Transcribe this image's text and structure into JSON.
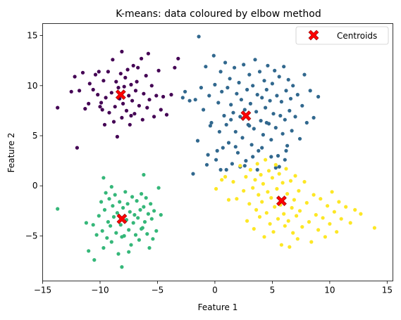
{
  "chart_data": {
    "type": "scatter",
    "title": "K-means: data coloured by elbow method",
    "xlabel": "Feature 1",
    "ylabel": "Feature 2",
    "xlim": [
      -15,
      15.5
    ],
    "ylim": [
      -9.5,
      16.2
    ],
    "xticks": [
      -15,
      -10,
      -5,
      0,
      5,
      10,
      15
    ],
    "yticks": [
      -5,
      0,
      5,
      10,
      15
    ],
    "grid": false,
    "legend_position": "top-right",
    "clusters": [
      {
        "color": "#440154",
        "points": [
          [
            -13.7,
            7.8
          ],
          [
            -12.5,
            9.4
          ],
          [
            -12.2,
            10.9
          ],
          [
            -12.0,
            3.8
          ],
          [
            -11.8,
            9.5
          ],
          [
            -11.5,
            11.3
          ],
          [
            -11.3,
            7.7
          ],
          [
            -11.0,
            8.2
          ],
          [
            -10.9,
            10.2
          ],
          [
            -10.6,
            9.6
          ],
          [
            -10.4,
            11.1
          ],
          [
            -10.2,
            9.1
          ],
          [
            -10.0,
            7.9
          ],
          [
            -9.8,
            7.6
          ],
          [
            -9.7,
            10.5
          ],
          [
            -9.6,
            6.1
          ],
          [
            -9.5,
            8.8
          ],
          [
            -9.3,
            11.4
          ],
          [
            -9.2,
            7.3
          ],
          [
            -9.0,
            9.3
          ],
          [
            -8.9,
            12.6
          ],
          [
            -8.8,
            6.4
          ],
          [
            -8.7,
            7.9
          ],
          [
            -8.6,
            10.4
          ],
          [
            -8.5,
            4.9
          ],
          [
            -8.4,
            9.8
          ],
          [
            -8.3,
            8.7
          ],
          [
            -8.2,
            11.2
          ],
          [
            -8.1,
            6.8
          ],
          [
            -8.0,
            8.2
          ],
          [
            -7.9,
            9.9
          ],
          [
            -7.8,
            10.8
          ],
          [
            -7.7,
            7.5
          ],
          [
            -7.6,
            11.6
          ],
          [
            -7.5,
            9.0
          ],
          [
            -7.4,
            6.1
          ],
          [
            -7.3,
            10.1
          ],
          [
            -7.2,
            8.5
          ],
          [
            -7.1,
            12.0
          ],
          [
            -7.0,
            7.2
          ],
          [
            -6.9,
            9.5
          ],
          [
            -6.8,
            10.4
          ],
          [
            -6.6,
            8.0
          ],
          [
            -6.4,
            12.7
          ],
          [
            -6.3,
            6.6
          ],
          [
            -6.2,
            9.2
          ],
          [
            -6.0,
            11.0
          ],
          [
            -5.9,
            7.8
          ],
          [
            -5.8,
            13.2
          ],
          [
            -5.7,
            8.6
          ],
          [
            -5.5,
            10.0
          ],
          [
            -5.3,
            6.9
          ],
          [
            -5.1,
            9.0
          ],
          [
            -4.9,
            11.5
          ],
          [
            -4.7,
            7.6
          ],
          [
            -4.5,
            8.9
          ],
          [
            -4.2,
            7.1
          ],
          [
            -3.8,
            9.1
          ],
          [
            -3.5,
            11.8
          ],
          [
            -3.2,
            12.7
          ],
          [
            -10.1,
            11.4
          ],
          [
            -8.1,
            13.4
          ],
          [
            -6.7,
            11.8
          ],
          [
            -9.9,
            8.3
          ],
          [
            -7.3,
            7.0
          ]
        ]
      },
      {
        "color": "#31688e",
        "points": [
          [
            -1.4,
            14.9
          ],
          [
            -2.6,
            9.4
          ],
          [
            -2.2,
            8.5
          ],
          [
            -1.9,
            1.2
          ],
          [
            -1.5,
            4.5
          ],
          [
            -1.2,
            9.8
          ],
          [
            -1.0,
            7.6
          ],
          [
            -0.8,
            11.9
          ],
          [
            -0.6,
            3.1
          ],
          [
            -0.5,
            9.0
          ],
          [
            -0.3,
            6.3
          ],
          [
            -0.1,
            13.0
          ],
          [
            0.0,
            10.1
          ],
          [
            0.1,
            2.6
          ],
          [
            0.3,
            8.3
          ],
          [
            0.4,
            5.4
          ],
          [
            0.5,
            11.4
          ],
          [
            0.6,
            9.4
          ],
          [
            0.7,
            3.8
          ],
          [
            0.8,
            7.0
          ],
          [
            0.9,
            12.3
          ],
          [
            1.0,
            6.1
          ],
          [
            1.1,
            9.8
          ],
          [
            1.2,
            4.3
          ],
          [
            1.3,
            10.7
          ],
          [
            1.4,
            8.1
          ],
          [
            1.5,
            2.2
          ],
          [
            1.6,
            7.3
          ],
          [
            1.7,
            11.8
          ],
          [
            1.8,
            5.4
          ],
          [
            1.9,
            9.2
          ],
          [
            2.0,
            3.3
          ],
          [
            2.1,
            10.3
          ],
          [
            2.2,
            6.9
          ],
          [
            2.3,
            8.6
          ],
          [
            2.4,
            4.8
          ],
          [
            2.5,
            12.1
          ],
          [
            2.6,
            7.6
          ],
          [
            2.7,
            2.5
          ],
          [
            2.8,
            9.6
          ],
          [
            2.9,
            6.1
          ],
          [
            3.0,
            11.1
          ],
          [
            3.1,
            8.2
          ],
          [
            3.2,
            4.1
          ],
          [
            3.3,
            10.0
          ],
          [
            3.4,
            5.7
          ],
          [
            3.5,
            12.6
          ],
          [
            3.6,
            7.4
          ],
          [
            3.7,
            9.1
          ],
          [
            3.8,
            3.5
          ],
          [
            3.9,
            11.4
          ],
          [
            4.0,
            6.5
          ],
          [
            4.1,
            8.8
          ],
          [
            4.2,
            5.1
          ],
          [
            4.3,
            10.5
          ],
          [
            4.4,
            7.8
          ],
          [
            4.5,
            9.6
          ],
          [
            4.6,
            12.0
          ],
          [
            4.7,
            6.2
          ],
          [
            4.8,
            8.5
          ],
          [
            4.9,
            4.6
          ],
          [
            5.0,
            10.2
          ],
          [
            5.1,
            7.2
          ],
          [
            5.2,
            11.5
          ],
          [
            5.3,
            5.8
          ],
          [
            5.4,
            9.0
          ],
          [
            5.5,
            3.0
          ],
          [
            5.6,
            10.9
          ],
          [
            5.7,
            7.0
          ],
          [
            5.8,
            8.4
          ],
          [
            5.9,
            5.2
          ],
          [
            6.0,
            11.9
          ],
          [
            6.1,
            6.6
          ],
          [
            6.2,
            9.5
          ],
          [
            6.3,
            4.0
          ],
          [
            6.4,
            10.6
          ],
          [
            6.5,
            7.5
          ],
          [
            6.6,
            8.7
          ],
          [
            6.7,
            5.5
          ],
          [
            6.8,
            10.0
          ],
          [
            7.0,
            6.9
          ],
          [
            7.2,
            9.1
          ],
          [
            7.4,
            4.7
          ],
          [
            7.6,
            8.0
          ],
          [
            7.8,
            11.1
          ],
          [
            8.0,
            6.3
          ],
          [
            8.3,
            9.5
          ],
          [
            8.6,
            6.8
          ],
          [
            9.0,
            8.9
          ],
          [
            -0.7,
            2.1
          ],
          [
            0.2,
            3.5
          ],
          [
            1.0,
            1.6
          ],
          [
            1.8,
            3.9
          ],
          [
            2.6,
            2.0
          ],
          [
            3.3,
            2.9
          ],
          [
            4.1,
            3.8
          ],
          [
            4.9,
            2.9
          ],
          [
            5.6,
            1.9
          ],
          [
            6.1,
            2.6
          ],
          [
            -1.7,
            8.6
          ],
          [
            -0.4,
            6.0
          ],
          [
            0.5,
            1.6
          ],
          [
            1.4,
            6.6
          ],
          [
            2.2,
            1.9
          ],
          [
            3.0,
            6.0
          ],
          [
            3.7,
            1.6
          ],
          [
            4.5,
            6.3
          ],
          [
            5.3,
            1.8
          ],
          [
            6.2,
            3.5
          ],
          [
            -2.8,
            8.8
          ]
        ]
      },
      {
        "color": "#35b779",
        "points": [
          [
            -13.7,
            -2.3
          ],
          [
            -11.2,
            -3.7
          ],
          [
            -11.0,
            -6.5
          ],
          [
            -10.5,
            -7.4
          ],
          [
            -10.3,
            -4.9
          ],
          [
            -10.1,
            -3.0
          ],
          [
            -9.9,
            -1.6
          ],
          [
            -9.8,
            -4.5
          ],
          [
            -9.7,
            -6.2
          ],
          [
            -9.6,
            -2.4
          ],
          [
            -9.5,
            -0.7
          ],
          [
            -9.4,
            -5.2
          ],
          [
            -9.3,
            -3.6
          ],
          [
            -9.2,
            -1.3
          ],
          [
            -9.1,
            -4.0
          ],
          [
            -9.0,
            -5.6
          ],
          [
            -8.9,
            -2.0
          ],
          [
            -8.8,
            -3.1
          ],
          [
            -8.7,
            -0.9
          ],
          [
            -8.6,
            -4.7
          ],
          [
            -8.5,
            -2.7
          ],
          [
            -8.4,
            -6.8
          ],
          [
            -8.3,
            -1.6
          ],
          [
            -8.2,
            -3.9
          ],
          [
            -8.1,
            -8.1
          ],
          [
            -8.0,
            -2.2
          ],
          [
            -7.9,
            -5.0
          ],
          [
            -7.8,
            -0.6
          ],
          [
            -7.7,
            -3.4
          ],
          [
            -7.6,
            -1.8
          ],
          [
            -7.5,
            -4.4
          ],
          [
            -7.4,
            -2.6
          ],
          [
            -7.3,
            -5.9
          ],
          [
            -7.2,
            -1.1
          ],
          [
            -7.1,
            -3.7
          ],
          [
            -7.0,
            -2.9
          ],
          [
            -6.9,
            -4.9
          ],
          [
            -6.8,
            -1.5
          ],
          [
            -6.7,
            -3.2
          ],
          [
            -6.6,
            -5.4
          ],
          [
            -6.5,
            -2.4
          ],
          [
            -6.4,
            -0.8
          ],
          [
            -6.3,
            -4.2
          ],
          [
            -6.2,
            -2.1
          ],
          [
            -6.1,
            -3.6
          ],
          [
            -6.0,
            -1.2
          ],
          [
            -5.9,
            -4.8
          ],
          [
            -5.8,
            -2.8
          ],
          [
            -5.7,
            -6.2
          ],
          [
            -5.6,
            -1.8
          ],
          [
            -5.5,
            -3.3
          ],
          [
            -5.4,
            -5.3
          ],
          [
            -5.3,
            -2.5
          ],
          [
            -5.1,
            -4.5
          ],
          [
            -4.9,
            -0.2
          ],
          [
            -4.7,
            -2.9
          ],
          [
            -10.6,
            -3.9
          ],
          [
            -9.0,
            -0.1
          ],
          [
            -8.1,
            -5.1
          ],
          [
            -7.5,
            -6.6
          ],
          [
            -6.2,
            1.1
          ],
          [
            -9.7,
            0.8
          ],
          [
            -6.4,
            -4.3
          ]
        ]
      },
      {
        "color": "#fde725",
        "points": [
          [
            1.6,
            0.4
          ],
          [
            1.9,
            -1.3
          ],
          [
            2.2,
            2.0
          ],
          [
            2.5,
            -0.5
          ],
          [
            2.7,
            0.9
          ],
          [
            2.8,
            -3.5
          ],
          [
            3.0,
            -1.8
          ],
          [
            3.1,
            1.6
          ],
          [
            3.3,
            -0.2
          ],
          [
            3.4,
            -4.3
          ],
          [
            3.5,
            0.6
          ],
          [
            3.6,
            -2.4
          ],
          [
            3.7,
            2.2
          ],
          [
            3.8,
            -0.9
          ],
          [
            3.9,
            -3.1
          ],
          [
            4.0,
            1.1
          ],
          [
            4.1,
            -1.6
          ],
          [
            4.2,
            0.2
          ],
          [
            4.3,
            -5.1
          ],
          [
            4.4,
            2.6
          ],
          [
            4.5,
            -2.7
          ],
          [
            4.6,
            -0.6
          ],
          [
            4.7,
            1.5
          ],
          [
            4.8,
            -3.8
          ],
          [
            4.9,
            -1.2
          ],
          [
            5.0,
            0.8
          ],
          [
            5.1,
            -4.6
          ],
          [
            5.2,
            -2.1
          ],
          [
            5.3,
            2.1
          ],
          [
            5.4,
            -0.3
          ],
          [
            5.5,
            -3.3
          ],
          [
            5.6,
            1.2
          ],
          [
            5.7,
            -1.9
          ],
          [
            5.8,
            -5.9
          ],
          [
            5.9,
            0.3
          ],
          [
            6.0,
            -2.8
          ],
          [
            6.1,
            -4.0
          ],
          [
            6.2,
            1.7
          ],
          [
            6.3,
            -0.8
          ],
          [
            6.4,
            -3.5
          ],
          [
            6.5,
            -6.1
          ],
          [
            6.6,
            0.5
          ],
          [
            6.7,
            -2.2
          ],
          [
            6.8,
            -4.7
          ],
          [
            6.9,
            -1.4
          ],
          [
            7.0,
            1.0
          ],
          [
            7.1,
            -3.0
          ],
          [
            7.2,
            -5.3
          ],
          [
            7.3,
            -0.5
          ],
          [
            7.4,
            -2.5
          ],
          [
            7.6,
            -4.1
          ],
          [
            7.8,
            0.4
          ],
          [
            8.0,
            -1.7
          ],
          [
            8.2,
            -3.6
          ],
          [
            8.4,
            -5.6
          ],
          [
            8.6,
            -0.9
          ],
          [
            8.8,
            -2.9
          ],
          [
            9.0,
            -4.4
          ],
          [
            9.2,
            -1.3
          ],
          [
            9.4,
            -3.2
          ],
          [
            9.6,
            -5.1
          ],
          [
            9.8,
            -2.0
          ],
          [
            10.0,
            -3.8
          ],
          [
            10.2,
            -0.6
          ],
          [
            10.4,
            -2.6
          ],
          [
            10.6,
            -4.6
          ],
          [
            10.8,
            -1.6
          ],
          [
            11.0,
            -3.3
          ],
          [
            11.4,
            -2.1
          ],
          [
            11.8,
            -3.7
          ],
          [
            12.2,
            -2.4
          ],
          [
            12.7,
            -2.8
          ],
          [
            13.9,
            -4.2
          ],
          [
            0.1,
            -0.3
          ],
          [
            0.6,
            0.6
          ],
          [
            1.2,
            -1.4
          ],
          [
            0.9,
            0.9
          ]
        ]
      }
    ],
    "centroids": {
      "label": "Centroids",
      "color": "#ff0000",
      "points": [
        [
          -8.2,
          9.1
        ],
        [
          2.7,
          7.0
        ],
        [
          -8.1,
          -3.3
        ],
        [
          5.8,
          -1.5
        ]
      ]
    }
  }
}
